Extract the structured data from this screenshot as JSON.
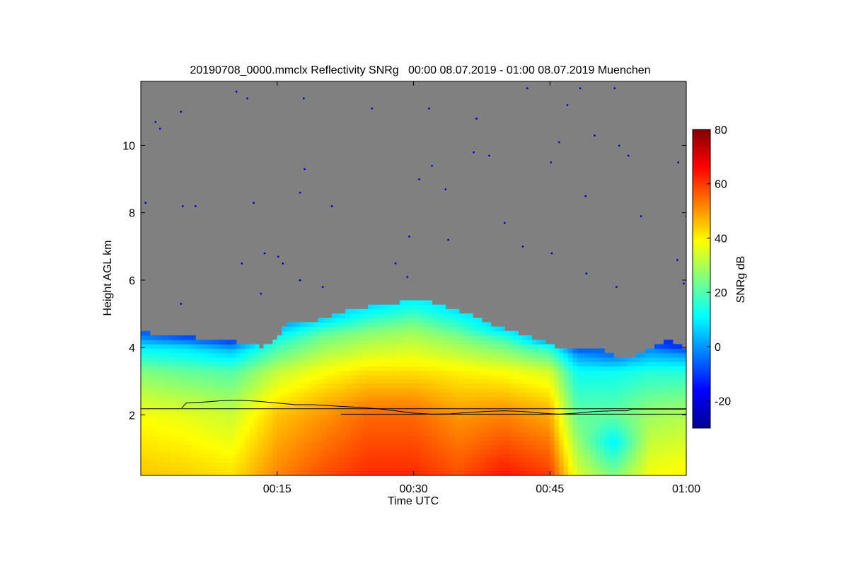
{
  "chart_data": {
    "type": "heatmap",
    "title": "20190708_0000.mmclx Reflectivity SNRg   00:00 08.07.2019 - 01:00 08.07.2019 Muenchen",
    "xlabel": "Time UTC",
    "ylabel": "Height AGL km",
    "xlim": [
      0,
      60
    ],
    "ylim": [
      0.2,
      11.9
    ],
    "x_ticks": [
      {
        "value": 15,
        "label": "00:15"
      },
      {
        "value": 30,
        "label": "00:30"
      },
      {
        "value": 45,
        "label": "00:45"
      },
      {
        "value": 60,
        "label": "01:00"
      }
    ],
    "y_ticks": [
      {
        "value": 2,
        "label": "2"
      },
      {
        "value": 4,
        "label": "4"
      },
      {
        "value": 6,
        "label": "6"
      },
      {
        "value": 8,
        "label": "8"
      },
      {
        "value": 10,
        "label": "10"
      }
    ],
    "colorbar": {
      "label": "SNRg dB",
      "range": [
        -30,
        80
      ],
      "ticks": [
        {
          "value": -20,
          "label": "-20"
        },
        {
          "value": 0,
          "label": "0"
        },
        {
          "value": 20,
          "label": "20"
        },
        {
          "value": 40,
          "label": "40"
        },
        {
          "value": 60,
          "label": "60"
        },
        {
          "value": 80,
          "label": "80"
        }
      ],
      "colormap": "jet"
    },
    "background_color": "#808080",
    "cloud_top_km": [
      [
        0,
        4.45
      ],
      [
        2,
        4.4
      ],
      [
        4,
        4.35
      ],
      [
        6,
        4.3
      ],
      [
        8,
        4.25
      ],
      [
        10,
        4.2
      ],
      [
        12,
        4.1
      ],
      [
        13.5,
        4.0
      ],
      [
        15,
        4.25
      ],
      [
        16,
        4.7
      ],
      [
        18,
        4.75
      ],
      [
        20,
        4.85
      ],
      [
        22,
        5.05
      ],
      [
        24,
        5.15
      ],
      [
        26,
        5.25
      ],
      [
        28,
        5.3
      ],
      [
        30,
        5.4
      ],
      [
        32,
        5.35
      ],
      [
        34,
        5.15
      ],
      [
        36,
        5.0
      ],
      [
        38,
        4.75
      ],
      [
        40,
        4.55
      ],
      [
        42,
        4.4
      ],
      [
        44,
        4.2
      ],
      [
        46,
        4.0
      ],
      [
        48,
        3.9
      ],
      [
        50,
        4.0
      ],
      [
        52,
        3.75
      ],
      [
        54,
        3.7
      ],
      [
        56,
        4.0
      ],
      [
        58,
        4.2
      ],
      [
        60,
        3.95
      ]
    ],
    "snr_columns_db": [
      {
        "t": 0,
        "levels": [
          [
            0.2,
            45
          ],
          [
            2.0,
            38
          ],
          [
            3.3,
            25
          ],
          [
            4.0,
            10
          ],
          [
            4.4,
            -5
          ]
        ]
      },
      {
        "t": 5,
        "levels": [
          [
            0.2,
            44
          ],
          [
            2.0,
            36
          ],
          [
            3.3,
            22
          ],
          [
            4.0,
            8
          ],
          [
            4.3,
            -8
          ]
        ]
      },
      {
        "t": 10,
        "levels": [
          [
            0.2,
            42
          ],
          [
            2.0,
            33
          ],
          [
            3.3,
            20
          ],
          [
            3.9,
            5
          ],
          [
            4.2,
            -10
          ]
        ]
      },
      {
        "t": 15,
        "levels": [
          [
            0.2,
            52
          ],
          [
            2.0,
            45
          ],
          [
            3.3,
            32
          ],
          [
            4.2,
            15
          ],
          [
            4.7,
            0
          ]
        ]
      },
      {
        "t": 20,
        "levels": [
          [
            0.2,
            58
          ],
          [
            2.0,
            50
          ],
          [
            3.3,
            38
          ],
          [
            4.4,
            22
          ],
          [
            4.9,
            5
          ]
        ]
      },
      {
        "t": 25,
        "levels": [
          [
            0.2,
            62
          ],
          [
            2.0,
            55
          ],
          [
            3.3,
            42
          ],
          [
            4.5,
            25
          ],
          [
            5.2,
            8
          ]
        ]
      },
      {
        "t": 30,
        "levels": [
          [
            0.2,
            62
          ],
          [
            2.0,
            55
          ],
          [
            3.3,
            42
          ],
          [
            4.5,
            28
          ],
          [
            5.4,
            10
          ]
        ]
      },
      {
        "t": 35,
        "levels": [
          [
            0.2,
            58
          ],
          [
            2.0,
            50
          ],
          [
            3.3,
            40
          ],
          [
            4.3,
            25
          ],
          [
            5.1,
            8
          ]
        ]
      },
      {
        "t": 40,
        "levels": [
          [
            0.2,
            64
          ],
          [
            2.0,
            52
          ],
          [
            3.3,
            38
          ],
          [
            4.2,
            20
          ],
          [
            4.6,
            5
          ]
        ]
      },
      {
        "t": 45,
        "levels": [
          [
            0.2,
            60
          ],
          [
            2.0,
            48
          ],
          [
            3.3,
            34
          ],
          [
            4.0,
            15
          ],
          [
            4.2,
            0
          ]
        ]
      },
      {
        "t": 48,
        "levels": [
          [
            0.2,
            35
          ],
          [
            2.0,
            22
          ],
          [
            3.3,
            12
          ],
          [
            3.8,
            0
          ],
          [
            4.0,
            -10
          ]
        ]
      },
      {
        "t": 52,
        "levels": [
          [
            0.2,
            25
          ],
          [
            1.2,
            10
          ],
          [
            2.0,
            22
          ],
          [
            3.3,
            12
          ],
          [
            3.8,
            -5
          ]
        ]
      },
      {
        "t": 56,
        "levels": [
          [
            0.2,
            38
          ],
          [
            2.0,
            28
          ],
          [
            3.3,
            15
          ],
          [
            3.9,
            0
          ],
          [
            4.1,
            -10
          ]
        ]
      },
      {
        "t": 60,
        "levels": [
          [
            0.2,
            40
          ],
          [
            2.0,
            30
          ],
          [
            3.3,
            15
          ],
          [
            3.8,
            0
          ],
          [
            4.0,
            -12
          ]
        ]
      }
    ],
    "overlay_lines": [
      {
        "name": "horizontal reference",
        "points": [
          [
            0,
            2.18
          ],
          [
            60,
            2.18
          ]
        ]
      },
      {
        "name": "melting layer height",
        "points": [
          [
            4.5,
            2.2
          ],
          [
            5,
            2.35
          ],
          [
            7,
            2.38
          ],
          [
            9,
            2.42
          ],
          [
            11,
            2.43
          ],
          [
            13,
            2.4
          ],
          [
            15,
            2.35
          ],
          [
            17,
            2.3
          ],
          [
            19,
            2.3
          ],
          [
            22,
            2.25
          ],
          [
            24,
            2.22
          ],
          [
            26,
            2.18
          ],
          [
            28,
            2.12
          ],
          [
            30,
            2.05
          ],
          [
            32,
            2.02
          ],
          [
            34,
            2.03
          ],
          [
            36,
            2.07
          ],
          [
            38,
            2.1
          ],
          [
            40,
            2.12
          ],
          [
            42,
            2.1
          ],
          [
            44,
            2.05
          ],
          [
            46,
            2.02
          ],
          [
            48,
            2.05
          ],
          [
            50,
            2.1
          ],
          [
            52,
            2.12
          ],
          [
            53.5,
            2.12
          ],
          [
            54,
            2.17
          ],
          [
            60,
            2.17
          ]
        ]
      },
      {
        "name": "lower reference",
        "points": [
          [
            22,
            2.02
          ],
          [
            60,
            2.02
          ]
        ]
      }
    ],
    "speckle_points": [
      [
        10.5,
        11.6
      ],
      [
        11.7,
        11.4
      ],
      [
        17.9,
        11.4
      ],
      [
        25.4,
        11.1
      ],
      [
        31.7,
        11.1
      ],
      [
        4.4,
        11.0
      ],
      [
        36.9,
        10.8
      ],
      [
        46.9,
        11.2
      ],
      [
        42.5,
        11.7
      ],
      [
        52.1,
        11.7
      ],
      [
        48.3,
        11.7
      ],
      [
        1.6,
        10.7
      ],
      [
        2.1,
        10.5
      ],
      [
        49.9,
        10.3
      ],
      [
        46.0,
        10.1
      ],
      [
        52.6,
        10.0
      ],
      [
        36.6,
        9.8
      ],
      [
        38.3,
        9.7
      ],
      [
        45.1,
        9.5
      ],
      [
        53.6,
        9.7
      ],
      [
        59.1,
        9.5
      ],
      [
        32.0,
        9.4
      ],
      [
        30.6,
        9.0
      ],
      [
        18.0,
        9.3
      ],
      [
        17.5,
        8.6
      ],
      [
        33.5,
        8.7
      ],
      [
        48.9,
        8.5
      ],
      [
        0.5,
        8.3
      ],
      [
        4.6,
        8.2
      ],
      [
        6.0,
        8.2
      ],
      [
        12.4,
        8.3
      ],
      [
        21.0,
        8.2
      ],
      [
        40.0,
        7.7
      ],
      [
        55.0,
        7.9
      ],
      [
        29.5,
        7.3
      ],
      [
        33.8,
        7.2
      ],
      [
        13.6,
        6.8
      ],
      [
        15.1,
        6.7
      ],
      [
        11.1,
        6.5
      ],
      [
        15.6,
        6.5
      ],
      [
        28.0,
        6.5
      ],
      [
        42.0,
        7.0
      ],
      [
        45.2,
        6.8
      ],
      [
        59.0,
        6.6
      ],
      [
        29.3,
        6.1
      ],
      [
        17.5,
        6.0
      ],
      [
        49.0,
        6.2
      ],
      [
        52.3,
        5.8
      ],
      [
        59.7,
        5.9
      ],
      [
        20.0,
        5.8
      ],
      [
        13.2,
        5.6
      ],
      [
        4.4,
        5.3
      ],
      [
        60.0,
        7.9
      ]
    ],
    "speckle_color": "#0000c8"
  }
}
